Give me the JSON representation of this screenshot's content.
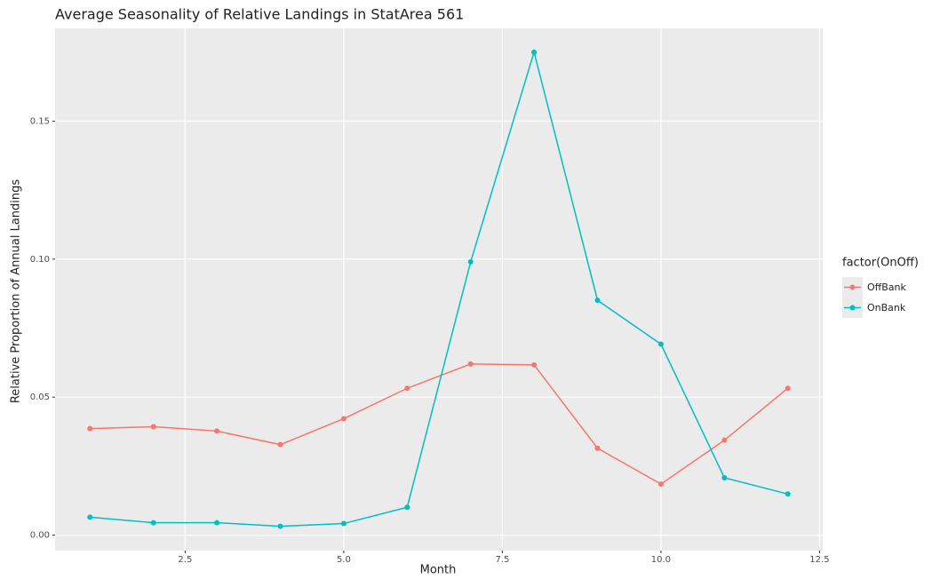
{
  "chart_data": {
    "type": "line",
    "title": "Average Seasonality of Relative Landings in StatArea 561",
    "x_label": "Month",
    "y_label": "Relative Proportion of Annual Landings",
    "legend_title": "factor(OnOff)",
    "legend_position": "right",
    "grid": true,
    "x": [
      1,
      2,
      3,
      4,
      5,
      6,
      7,
      8,
      9,
      10,
      11,
      12
    ],
    "series": [
      {
        "name": "OffBank",
        "color": "#F8766D",
        "values": [
          0.0386,
          0.0393,
          0.0377,
          0.0328,
          0.0422,
          0.0532,
          0.062,
          0.0617,
          0.0315,
          0.0185,
          0.0344,
          0.0532
        ]
      },
      {
        "name": "OnBank",
        "color": "#00BFC4",
        "values": [
          0.0065,
          0.0045,
          0.0045,
          0.0032,
          0.0042,
          0.0101,
          0.099,
          0.175,
          0.0851,
          0.0692,
          0.0208,
          0.0149
        ]
      }
    ],
    "xlim": [
      0.45,
      12.55
    ],
    "xticks": [
      2.5,
      {
        "value": 5,
        "label": "5.0"
      },
      7.5,
      {
        "value": 10,
        "label": "10.0"
      },
      12.5
    ],
    "ylim": [
      -0.0056,
      0.1836
    ],
    "yticks": [
      {
        "value": 0,
        "label": "0.00"
      },
      {
        "value": 0.05,
        "label": "0.05"
      },
      {
        "value": 0.1,
        "label": "0.10"
      },
      {
        "value": 0.15,
        "label": "0.15"
      }
    ]
  }
}
